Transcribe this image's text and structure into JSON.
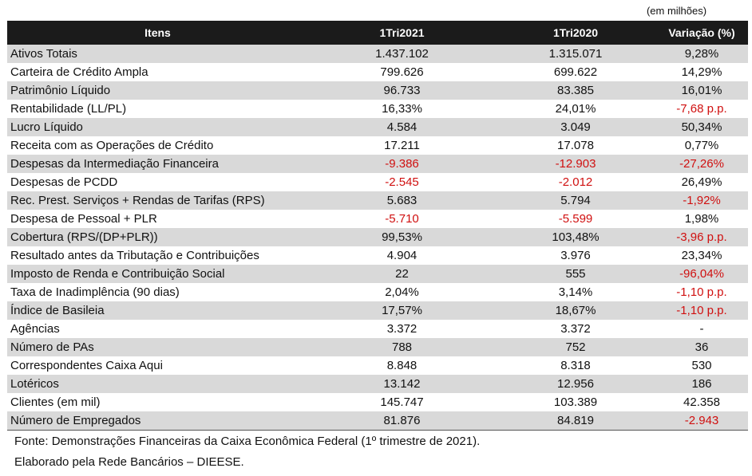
{
  "unit_note": "(em milhões)",
  "header": {
    "item": "Itens",
    "col1": "1Tri2021",
    "col2": "1Tri2020",
    "col3": "Variação (%)"
  },
  "rows": [
    {
      "item": "Ativos Totais",
      "v2021": "1.437.102",
      "v2020": "1.315.071",
      "var": "9,28%",
      "neg2021": false,
      "neg2020": false,
      "negVar": false
    },
    {
      "item": "Carteira de Crédito Ampla",
      "v2021": "799.626",
      "v2020": "699.622",
      "var": "14,29%",
      "neg2021": false,
      "neg2020": false,
      "negVar": false
    },
    {
      "item": "Patrimônio Líquido",
      "v2021": "96.733",
      "v2020": "83.385",
      "var": "16,01%",
      "neg2021": false,
      "neg2020": false,
      "negVar": false
    },
    {
      "item": "Rentabilidade (LL/PL)",
      "v2021": "16,33%",
      "v2020": "24,01%",
      "var": "-7,68 p.p.",
      "neg2021": false,
      "neg2020": false,
      "negVar": true
    },
    {
      "item": "Lucro Líquido",
      "v2021": "4.584",
      "v2020": "3.049",
      "var": "50,34%",
      "neg2021": false,
      "neg2020": false,
      "negVar": false
    },
    {
      "item": "Receita com as Operações de Crédito",
      "v2021": "17.211",
      "v2020": "17.078",
      "var": "0,77%",
      "neg2021": false,
      "neg2020": false,
      "negVar": false
    },
    {
      "item": "Despesas da Intermediação Financeira",
      "v2021": "-9.386",
      "v2020": "-12.903",
      "var": "-27,26%",
      "neg2021": true,
      "neg2020": true,
      "negVar": true
    },
    {
      "item": "Despesas de PCDD",
      "v2021": "-2.545",
      "v2020": "-2.012",
      "var": "26,49%",
      "neg2021": true,
      "neg2020": true,
      "negVar": false
    },
    {
      "item": "Rec. Prest. Serviços + Rendas de Tarifas (RPS)",
      "v2021": "5.683",
      "v2020": "5.794",
      "var": "-1,92%",
      "neg2021": false,
      "neg2020": false,
      "negVar": true
    },
    {
      "item": "Despesa de Pessoal + PLR",
      "v2021": "-5.710",
      "v2020": "-5.599",
      "var": "1,98%",
      "neg2021": true,
      "neg2020": true,
      "negVar": false
    },
    {
      "item": "Cobertura (RPS/(DP+PLR))",
      "v2021": "99,53%",
      "v2020": "103,48%",
      "var": "-3,96 p.p.",
      "neg2021": false,
      "neg2020": false,
      "negVar": true
    },
    {
      "item": "Resultado antes da Tributação e Contribuições",
      "v2021": "4.904",
      "v2020": "3.976",
      "var": "23,34%",
      "neg2021": false,
      "neg2020": false,
      "negVar": false
    },
    {
      "item": "Imposto de Renda e Contribuição Social",
      "v2021": "22",
      "v2020": "555",
      "var": "-96,04%",
      "neg2021": false,
      "neg2020": false,
      "negVar": true
    },
    {
      "item": "Taxa de Inadimplência (90 dias)",
      "v2021": "2,04%",
      "v2020": "3,14%",
      "var": "-1,10 p.p.",
      "neg2021": false,
      "neg2020": false,
      "negVar": true
    },
    {
      "item": "Índice de Basileia",
      "v2021": "17,57%",
      "v2020": "18,67%",
      "var": "-1,10 p.p.",
      "neg2021": false,
      "neg2020": false,
      "negVar": true
    },
    {
      "item": "Agências",
      "v2021": "3.372",
      "v2020": "3.372",
      "var": "-",
      "neg2021": false,
      "neg2020": false,
      "negVar": false
    },
    {
      "item": "Número de PAs",
      "v2021": "788",
      "v2020": "752",
      "var": "36",
      "neg2021": false,
      "neg2020": false,
      "negVar": false
    },
    {
      "item": "Correspondentes Caixa Aqui",
      "v2021": "8.848",
      "v2020": "8.318",
      "var": "530",
      "neg2021": false,
      "neg2020": false,
      "negVar": false
    },
    {
      "item": "Lotéricos",
      "v2021": "13.142",
      "v2020": "12.956",
      "var": "186",
      "neg2021": false,
      "neg2020": false,
      "negVar": false
    },
    {
      "item": "Clientes (em mil)",
      "v2021": "145.747",
      "v2020": "103.389",
      "var": "42.358",
      "neg2021": false,
      "neg2020": false,
      "negVar": false
    },
    {
      "item": " Número de Empregados",
      "v2021": "81.876",
      "v2020": "84.819",
      "var": "-2.943",
      "neg2021": false,
      "neg2020": false,
      "negVar": true
    }
  ],
  "footer": {
    "source": "Fonte: Demonstrações Financeiras da Caixa Econômica Federal (1º trimestre de 2021).",
    "author": "Elaborado pela Rede Bancários – DIEESE."
  },
  "colors": {
    "header_bg": "#1b1b1b",
    "stripe": "#d9d9d9",
    "negative": "#d01010"
  }
}
